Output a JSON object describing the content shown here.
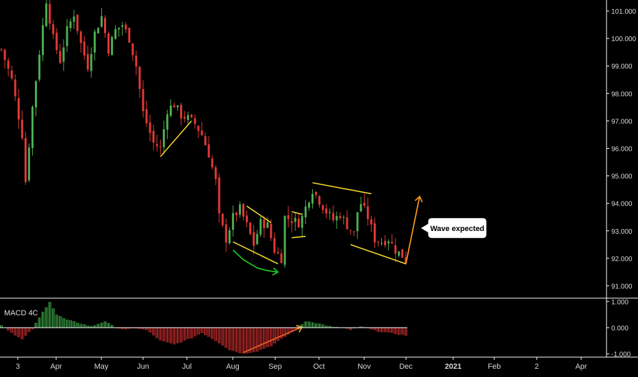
{
  "chart_data": {
    "type": "candlestick",
    "price_axis": {
      "ticks": [
        "101.000",
        "100.000",
        "99.000",
        "98.000",
        "97.000",
        "96.000",
        "95.000",
        "94.000",
        "93.000",
        "92.000",
        "91.000"
      ],
      "ylim": [
        90.6,
        101.4
      ]
    },
    "indicator": {
      "name": "MACD 4C",
      "ticks": [
        "1.000",
        "0.000",
        "-1.000"
      ],
      "ylim": [
        -1.1,
        1.1
      ],
      "histogram_keypoints": [
        [
          0,
          0.1
        ],
        [
          3,
          -0.2
        ],
        [
          6,
          -0.45
        ],
        [
          9,
          -0.05
        ],
        [
          12,
          0.6
        ],
        [
          14,
          1.0
        ],
        [
          16,
          0.5
        ],
        [
          19,
          0.3
        ],
        [
          22,
          0.2
        ],
        [
          26,
          0.05
        ],
        [
          30,
          0.25
        ],
        [
          33,
          0.0
        ],
        [
          36,
          -0.08
        ],
        [
          39,
          -0.02
        ],
        [
          42,
          -0.1
        ],
        [
          46,
          -0.5
        ],
        [
          50,
          -0.65
        ],
        [
          55,
          -0.4
        ],
        [
          58,
          -0.2
        ],
        [
          62,
          -0.5
        ],
        [
          66,
          -0.85
        ],
        [
          70,
          -1.0
        ],
        [
          74,
          -0.9
        ],
        [
          78,
          -0.7
        ],
        [
          82,
          -0.35
        ],
        [
          85,
          -0.1
        ],
        [
          88,
          0.25
        ],
        [
          90,
          0.22
        ],
        [
          93,
          0.12
        ],
        [
          96,
          0.02
        ],
        [
          99,
          0.0
        ],
        [
          101,
          -0.1
        ],
        [
          104,
          0.05
        ],
        [
          108,
          -0.12
        ],
        [
          112,
          -0.2
        ],
        [
          116,
          -0.28
        ],
        [
          117,
          -0.3
        ]
      ],
      "gradient": [
        0,
        0.9
      ]
    },
    "series": [
      {
        "type": "candles",
        "up_color": "#4caf50",
        "down_color": "#e53935",
        "count": 118,
        "close_keypoints": [
          [
            0,
            99.6
          ],
          [
            3,
            98.5
          ],
          [
            6,
            96.5
          ],
          [
            7,
            94.8
          ],
          [
            9,
            97.5
          ],
          [
            11,
            99.5
          ],
          [
            13,
            101.4
          ],
          [
            15,
            100.0
          ],
          [
            17,
            99.2
          ],
          [
            19,
            100.3
          ],
          [
            21,
            100.9
          ],
          [
            23,
            99.8
          ],
          [
            25,
            99.0
          ],
          [
            27,
            100.2
          ],
          [
            29,
            100.8
          ],
          [
            31,
            99.6
          ],
          [
            33,
            100.3
          ],
          [
            35,
            100.5
          ],
          [
            37,
            100.0
          ],
          [
            39,
            99.0
          ],
          [
            41,
            97.3
          ],
          [
            44,
            96.2
          ],
          [
            46,
            96.0
          ],
          [
            48,
            97.4
          ],
          [
            50,
            97.6
          ],
          [
            52,
            97.2
          ],
          [
            54,
            97.1
          ],
          [
            56,
            96.9
          ],
          [
            58,
            96.5
          ],
          [
            60,
            95.8
          ],
          [
            62,
            94.8
          ],
          [
            63,
            93.5
          ],
          [
            65,
            92.7
          ],
          [
            67,
            93.5
          ],
          [
            69,
            93.8
          ],
          [
            71,
            93.2
          ],
          [
            73,
            92.5
          ],
          [
            75,
            93.3
          ],
          [
            77,
            93.2
          ],
          [
            79,
            92.3
          ],
          [
            81,
            92.0
          ],
          [
            82,
            93.5
          ],
          [
            84,
            93.4
          ],
          [
            86,
            93.3
          ],
          [
            87,
            93.5
          ],
          [
            89,
            94.2
          ],
          [
            90,
            94.5
          ],
          [
            92,
            94.1
          ],
          [
            94,
            93.7
          ],
          [
            96,
            93.4
          ],
          [
            98,
            93.6
          ],
          [
            100,
            93.2
          ],
          [
            102,
            92.9
          ],
          [
            103,
            93.7
          ],
          [
            104,
            94.0
          ],
          [
            106,
            93.5
          ],
          [
            108,
            92.7
          ],
          [
            110,
            92.6
          ],
          [
            112,
            92.7
          ],
          [
            114,
            92.3
          ],
          [
            116,
            92.1
          ],
          [
            117,
            91.9
          ]
        ]
      }
    ],
    "x_axis": {
      "ticks": [
        {
          "label": "3",
          "bold": false
        },
        {
          "label": "Apr",
          "bold": false
        },
        {
          "label": "May",
          "bold": false
        },
        {
          "label": "Jun",
          "bold": false
        },
        {
          "label": "Jul",
          "bold": false
        },
        {
          "label": "Aug",
          "bold": false
        },
        {
          "label": "Sep",
          "bold": false
        },
        {
          "label": "Oct",
          "bold": false
        },
        {
          "label": "Nov",
          "bold": false
        },
        {
          "label": "Dec",
          "bold": false
        },
        {
          "label": "2021",
          "bold": true
        },
        {
          "label": "Feb",
          "bold": false
        },
        {
          "label": "2",
          "bold": false
        },
        {
          "label": "Apr",
          "bold": false
        }
      ]
    },
    "annotations": [
      {
        "type": "line",
        "color": "#f5d92b",
        "points": [
          [
            46,
            95.7
          ],
          [
            55,
            97.0
          ]
        ]
      },
      {
        "type": "line",
        "color": "#f5d92b",
        "points": [
          [
            67,
            92.6
          ],
          [
            80,
            91.8
          ]
        ]
      },
      {
        "type": "line",
        "color": "#f5d92b",
        "points": [
          [
            71,
            93.9
          ],
          [
            78,
            93.3
          ]
        ]
      },
      {
        "type": "line",
        "color": "#f5d92b",
        "points": [
          [
            84,
            93.7
          ],
          [
            87,
            93.6
          ]
        ]
      },
      {
        "type": "line",
        "color": "#f5d92b",
        "points": [
          [
            84,
            92.75
          ],
          [
            88,
            92.8
          ]
        ]
      },
      {
        "type": "line",
        "color": "#f5d92b",
        "points": [
          [
            90,
            94.75
          ],
          [
            107,
            94.35
          ]
        ]
      },
      {
        "type": "line",
        "color": "#f5d92b",
        "points": [
          [
            101,
            92.5
          ],
          [
            117,
            91.8
          ]
        ]
      },
      {
        "type": "arrow",
        "color": "#1ec41e",
        "points": [
          [
            67,
            92.3
          ],
          [
            70,
            91.95
          ],
          [
            74,
            91.65
          ],
          [
            77,
            91.55
          ],
          [
            80,
            91.5
          ]
        ]
      },
      {
        "type": "arrow",
        "color": "#f7931a",
        "points": [
          [
            117,
            91.8
          ],
          [
            121,
            94.25
          ]
        ]
      },
      {
        "type": "arrow",
        "color": "#f7931a",
        "panel": "indicator",
        "points": [
          [
            70,
            -0.95
          ],
          [
            87,
            0.03
          ]
        ]
      },
      {
        "type": "callout",
        "text": "Wave expected",
        "value": 93.0
      }
    ]
  }
}
